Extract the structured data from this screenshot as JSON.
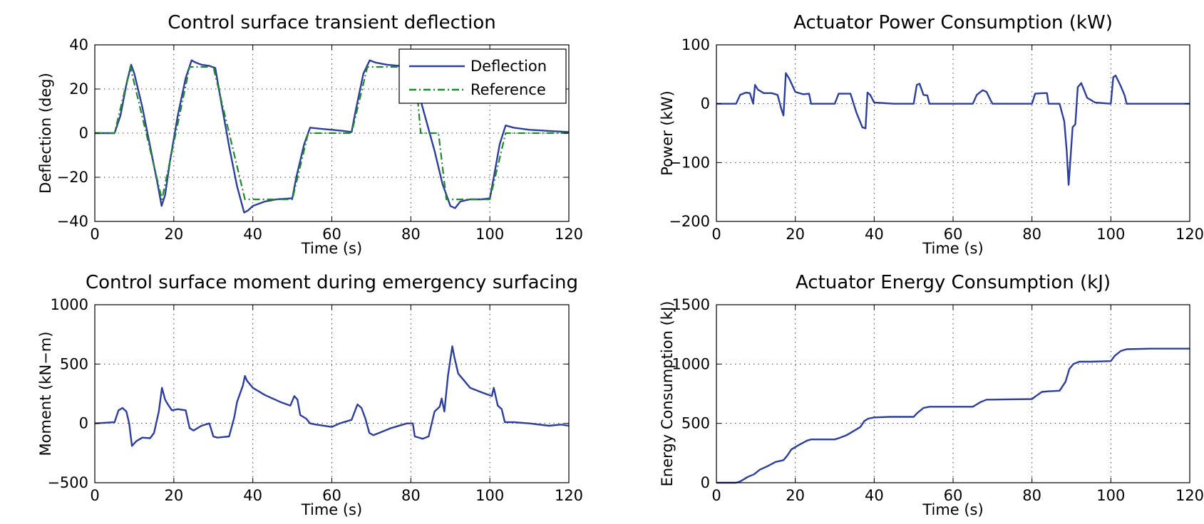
{
  "colors": {
    "deflection": "#2d3f9e",
    "reference": "#1f8a2c",
    "line": "#2d3f9e"
  },
  "chart_data": [
    {
      "type": "line",
      "title": "Control surface transient deflection",
      "xlabel": "Time (s)",
      "ylabel": "Deflection (deg)",
      "xlim": [
        0,
        120
      ],
      "ylim": [
        -40,
        40
      ],
      "xticks": [
        0,
        20,
        40,
        60,
        80,
        100,
        120
      ],
      "yticks": [
        -40,
        -20,
        0,
        20,
        40
      ],
      "grid": true,
      "legend": "top-right",
      "series": [
        {
          "name": "Deflection",
          "style": "solid",
          "color": "#2d3f9e",
          "x": [
            0,
            5,
            6.5,
            8,
            9.2,
            10,
            12,
            14,
            16,
            16.9,
            17.8,
            19,
            21,
            23,
            24.5,
            25.5,
            27,
            29,
            30.5,
            32,
            34,
            36,
            37.8,
            38.8,
            40,
            43,
            46,
            50,
            51,
            53,
            54.5,
            57,
            60,
            63,
            65,
            66,
            68,
            69.6,
            71,
            74,
            77,
            81,
            82,
            84,
            86,
            88,
            90,
            91.2,
            92.5,
            95,
            98,
            100,
            101,
            102.5,
            104,
            106,
            110,
            115,
            120
          ],
          "y": [
            0,
            0,
            8,
            22,
            31,
            27,
            12,
            -6,
            -24,
            -33,
            -28,
            -13,
            8,
            25,
            33,
            32,
            31,
            30.5,
            29.5,
            14,
            -6,
            -24,
            -36,
            -35,
            -33,
            -31,
            -30,
            -29.5,
            -20,
            -5,
            2.5,
            2,
            1.5,
            1,
            0.5,
            10,
            27,
            33,
            32,
            31,
            30.5,
            30,
            18,
            5,
            -8,
            -23,
            -33,
            -34,
            -31,
            -30,
            -30,
            -29.5,
            -20,
            -5,
            3.5,
            2.5,
            1.5,
            1,
            0.5
          ]
        },
        {
          "name": "Reference",
          "style": "dashdot",
          "color": "#1f8a2c",
          "x": [
            0,
            5,
            9,
            17,
            24,
            30,
            38,
            50,
            54,
            65,
            69,
            81,
            82.5,
            87,
            89,
            100,
            104,
            120
          ],
          "y": [
            0,
            0,
            30,
            -30,
            30,
            30,
            -30,
            -30,
            0,
            0,
            30,
            30,
            0,
            0,
            -30,
            -30,
            0,
            0
          ]
        }
      ]
    },
    {
      "type": "line",
      "title": "Actuator Power Consumption (kW)",
      "xlabel": "Time (s)",
      "ylabel": "Power (kW)",
      "xlim": [
        0,
        120
      ],
      "ylim": [
        -200,
        100
      ],
      "xticks": [
        0,
        20,
        40,
        60,
        80,
        100,
        120
      ],
      "yticks": [
        -200,
        -100,
        0,
        100
      ],
      "grid": true,
      "series": [
        {
          "name": "",
          "color": "#2d3f9e",
          "x": [
            0,
            5,
            6,
            7.5,
            8.5,
            9.3,
            9.8,
            10.5,
            12,
            14,
            15.5,
            16.5,
            17,
            17.6,
            18.5,
            20,
            22,
            23.5,
            24,
            30,
            31,
            34,
            35.5,
            37,
            37.8,
            38.3,
            39,
            40,
            45,
            50,
            50.8,
            51.5,
            52.5,
            53.5,
            54,
            65,
            66,
            67.5,
            68.5,
            69.5,
            70,
            80,
            80.8,
            83,
            83.8,
            84.2,
            87,
            88.2,
            88.8,
            89.3,
            89.7,
            90.3,
            91,
            91.6,
            92.5,
            94,
            96,
            100,
            100.6,
            101.2,
            102.5,
            103.5,
            104,
            110,
            120
          ],
          "y": [
            0,
            0,
            15,
            19,
            18,
            0,
            32,
            24,
            18,
            18,
            15,
            -10,
            -20,
            52,
            42,
            20,
            16,
            17,
            0,
            0,
            17,
            17,
            -15,
            -40,
            -42,
            19,
            15,
            2,
            0,
            0,
            32,
            34,
            15,
            14,
            0,
            0,
            15,
            23,
            20,
            6,
            0,
            0,
            17,
            18,
            18,
            0,
            0,
            -30,
            -80,
            -138,
            -100,
            -40,
            -35,
            28,
            35,
            10,
            2,
            0,
            45,
            48,
            30,
            14,
            0,
            0,
            0
          ]
        }
      ]
    },
    {
      "type": "line",
      "title": "Control surface moment during emergency surfacing",
      "xlabel": "Time (s)",
      "ylabel": "Moment (kN−m)",
      "xlim": [
        0,
        120
      ],
      "ylim": [
        -500,
        1000
      ],
      "xticks": [
        0,
        20,
        40,
        60,
        80,
        100,
        120
      ],
      "yticks": [
        -500,
        0,
        500,
        1000
      ],
      "grid": true,
      "series": [
        {
          "name": "",
          "color": "#2d3f9e",
          "x": [
            0,
            5,
            6,
            7,
            8,
            8.7,
            9.4,
            10.5,
            12,
            14,
            15,
            16.2,
            17,
            17.8,
            18.5,
            19.5,
            21,
            23,
            24,
            25,
            27,
            29,
            30,
            31,
            34,
            35.3,
            36,
            37.5,
            38,
            38.5,
            40,
            43,
            47,
            49.5,
            50.5,
            51.3,
            52,
            53.5,
            54.5,
            56,
            60,
            62,
            65,
            66.5,
            67.5,
            68.5,
            69.5,
            70.5,
            72,
            75,
            79,
            80.5,
            81,
            83,
            84.5,
            86,
            87.3,
            87.8,
            88.5,
            89.4,
            90.5,
            91,
            92,
            95,
            98,
            100.5,
            101,
            102,
            103,
            103.8,
            106,
            110,
            115,
            118,
            120
          ],
          "y": [
            0,
            10,
            110,
            130,
            100,
            0,
            -190,
            -150,
            -120,
            -125,
            -80,
            100,
            300,
            200,
            160,
            110,
            120,
            110,
            -40,
            -60,
            -20,
            0,
            -110,
            -120,
            -110,
            50,
            180,
            320,
            400,
            360,
            300,
            240,
            180,
            150,
            230,
            200,
            70,
            40,
            0,
            -10,
            -30,
            0,
            30,
            160,
            130,
            40,
            -80,
            -100,
            -80,
            -40,
            0,
            0,
            -110,
            -130,
            -110,
            100,
            140,
            210,
            100,
            400,
            650,
            560,
            420,
            300,
            260,
            230,
            300,
            150,
            120,
            10,
            10,
            0,
            -20,
            -10,
            -20
          ]
        }
      ]
    },
    {
      "type": "line",
      "title": "Actuator Energy Consumption (kJ)",
      "xlabel": "Time (s)",
      "ylabel": "Energy Consumption (kJ)",
      "xlim": [
        0,
        120
      ],
      "ylim": [
        0,
        1500
      ],
      "xticks": [
        0,
        20,
        40,
        60,
        80,
        100,
        120
      ],
      "yticks": [
        0,
        500,
        1000,
        1500
      ],
      "grid": true,
      "series": [
        {
          "name": "",
          "color": "#2d3f9e",
          "x": [
            0,
            5,
            6,
            8,
            9.5,
            11,
            13,
            15,
            17,
            18,
            19,
            21,
            23,
            24,
            30,
            31,
            33,
            35,
            36.5,
            37.5,
            38.5,
            40,
            44,
            50,
            51,
            52.5,
            54,
            65,
            66,
            67,
            68.5,
            70,
            80,
            81,
            82.5,
            84,
            87,
            88.5,
            89.5,
            90.5,
            92,
            95,
            100,
            101,
            102.5,
            104,
            110,
            120
          ],
          "y": [
            0,
            0,
            10,
            50,
            70,
            110,
            140,
            175,
            190,
            230,
            280,
            320,
            355,
            365,
            365,
            375,
            400,
            440,
            470,
            520,
            540,
            550,
            555,
            555,
            590,
            630,
            640,
            640,
            660,
            680,
            700,
            700,
            705,
            730,
            765,
            770,
            775,
            850,
            960,
            1000,
            1020,
            1020,
            1025,
            1070,
            1110,
            1125,
            1130,
            1130
          ]
        }
      ]
    }
  ]
}
